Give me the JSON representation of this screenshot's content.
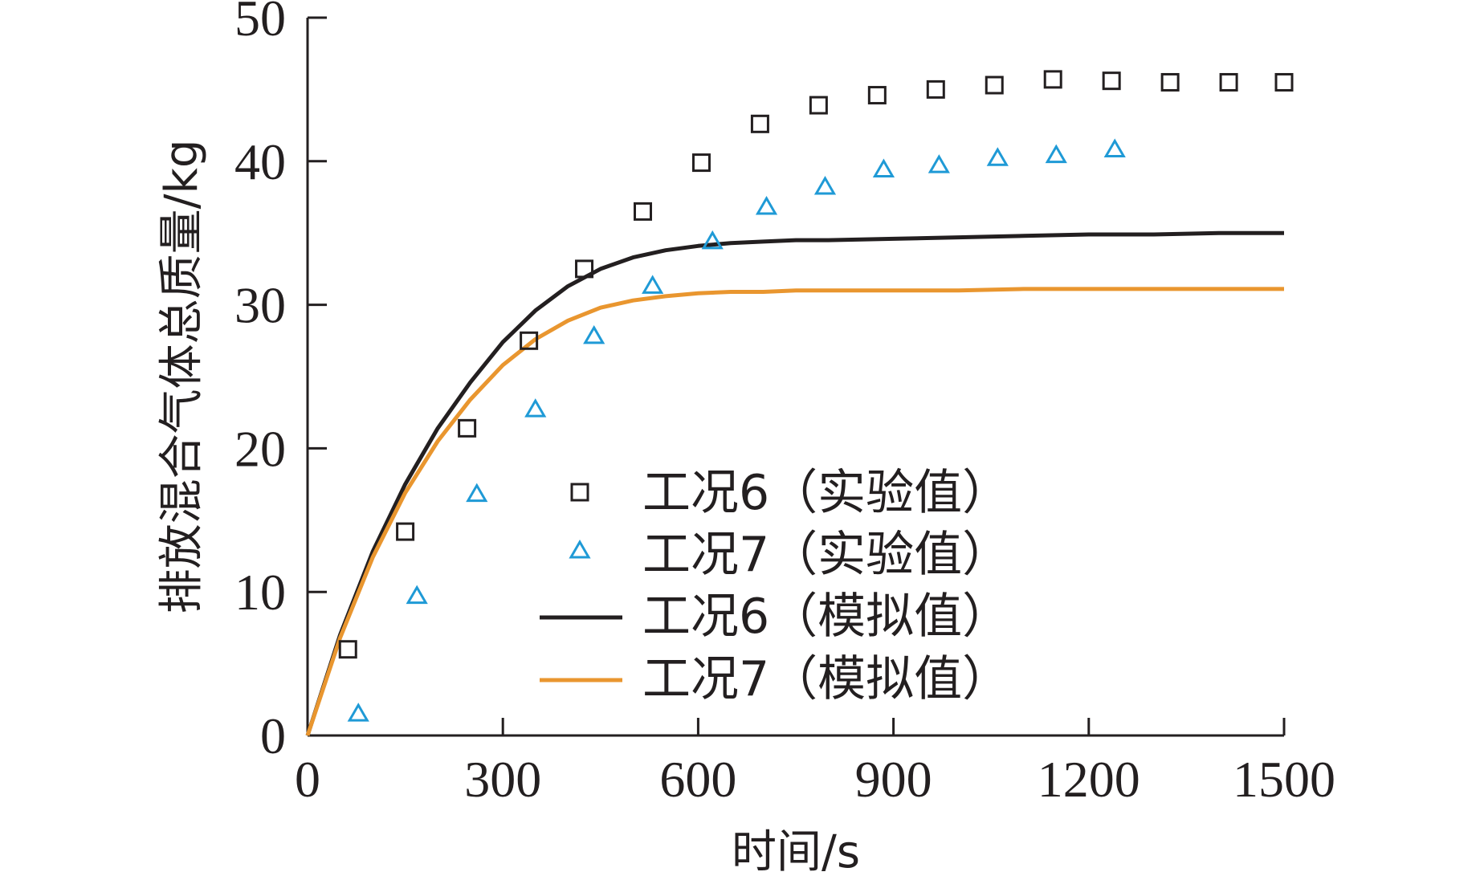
{
  "chart_data": {
    "type": "scatter+line",
    "xlabel": "时间/s",
    "ylabel": "排放混合气体总质量/kg",
    "xlim": [
      0,
      1500
    ],
    "ylim": [
      0,
      50
    ],
    "xticks": [
      0,
      300,
      600,
      900,
      1200,
      1500
    ],
    "yticks": [
      0,
      10,
      20,
      30,
      40,
      50
    ],
    "grid": false,
    "legend_position": "center-right",
    "series": [
      {
        "name": "工况6（实验值）",
        "kind": "scatter",
        "marker": "square",
        "color": "#231f20",
        "x": [
          62,
          150,
          245,
          340,
          425,
          515,
          605,
          695,
          785,
          875,
          965,
          1055,
          1145,
          1235,
          1325,
          1415,
          1500
        ],
        "y": [
          6.0,
          14.2,
          21.4,
          27.5,
          32.5,
          36.5,
          39.9,
          42.6,
          43.9,
          44.6,
          45.0,
          45.3,
          45.7,
          45.6,
          45.5,
          45.5,
          45.5
        ]
      },
      {
        "name": "工况7（实验值）",
        "kind": "scatter",
        "marker": "triangle",
        "color": "#1f9ad6",
        "x": [
          78,
          168,
          260,
          350,
          440,
          530,
          622,
          705,
          795,
          885,
          970,
          1060,
          1150,
          1240
        ],
        "y": [
          1.5,
          9.7,
          16.8,
          22.7,
          27.8,
          31.3,
          34.4,
          36.8,
          38.2,
          39.4,
          39.7,
          40.2,
          40.4,
          40.8
        ]
      },
      {
        "name": "工况6（模拟值）",
        "kind": "line",
        "color": "#231f20",
        "x": [
          0,
          50,
          100,
          150,
          200,
          250,
          300,
          350,
          400,
          450,
          500,
          550,
          600,
          650,
          700,
          750,
          800,
          900,
          1000,
          1100,
          1200,
          1300,
          1400,
          1500
        ],
        "y": [
          0,
          7.0,
          12.8,
          17.5,
          21.4,
          24.6,
          27.4,
          29.6,
          31.3,
          32.5,
          33.3,
          33.8,
          34.1,
          34.3,
          34.4,
          34.5,
          34.5,
          34.6,
          34.7,
          34.8,
          34.9,
          34.9,
          35.0,
          35.0
        ]
      },
      {
        "name": "工况7（模拟值）",
        "kind": "line",
        "color": "#e9962f",
        "x": [
          0,
          50,
          100,
          150,
          200,
          250,
          300,
          350,
          400,
          450,
          500,
          550,
          600,
          650,
          700,
          750,
          800,
          900,
          1000,
          1100,
          1200,
          1300,
          1400,
          1500
        ],
        "y": [
          0,
          6.8,
          12.4,
          16.9,
          20.5,
          23.4,
          25.8,
          27.6,
          28.9,
          29.8,
          30.3,
          30.6,
          30.8,
          30.9,
          30.9,
          31.0,
          31.0,
          31.0,
          31.0,
          31.1,
          31.1,
          31.1,
          31.1,
          31.1
        ]
      }
    ]
  }
}
